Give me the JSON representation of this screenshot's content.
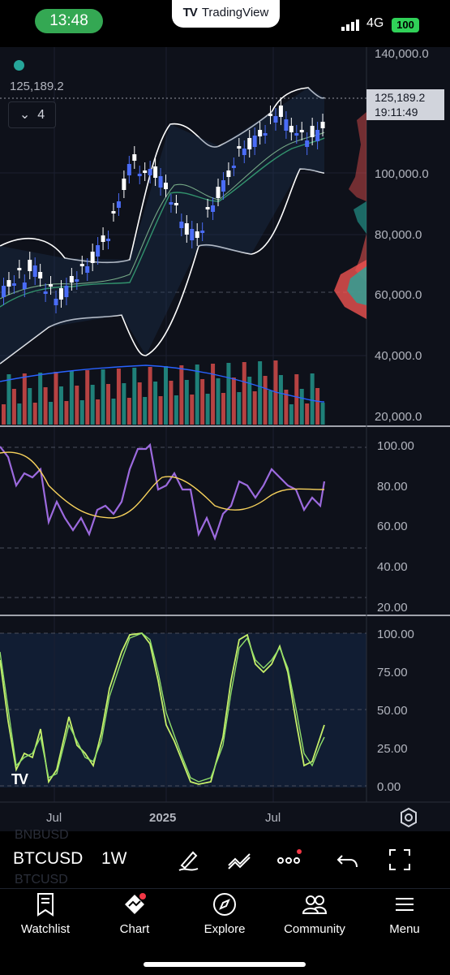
{
  "status_bar": {
    "time": "13:48",
    "app": "TradingView",
    "network": "4G",
    "battery": "100"
  },
  "chart": {
    "last_price_label": "125,189.2",
    "indicator_count": "4",
    "price_tag": {
      "price": "125,189.2",
      "countdown": "19:11:49"
    },
    "price_ticks": [
      "140,000.0",
      "100,000.0",
      "80,000.0",
      "60,000.0",
      "40,000.0",
      "20,000.0"
    ],
    "rsi_ticks": [
      "100.00",
      "80.00",
      "60.00",
      "40.00",
      "20.00"
    ],
    "stoch_ticks": [
      "100.00",
      "75.00",
      "50.00",
      "25.00",
      "0.00"
    ],
    "time_ticks": [
      "Jul",
      "2025",
      "Jul"
    ],
    "colors": {
      "up": "#26a69a",
      "down": "#ef5350",
      "candle_up": "#ffffff",
      "candle_down": "#4a6cf7",
      "rsi": "#9c6ade",
      "rsi_ma": "#f7d25c",
      "stoch_k": "#c7f06a",
      "stoch_d": "#8fde6a"
    }
  },
  "toolbar": {
    "symbol": "BTCUSD",
    "interval": "1W",
    "ghost_top": "BNBUSD",
    "ghost_bottom": "BTCUSD"
  },
  "tabs": [
    {
      "label": "Watchlist",
      "icon": "watchlist-icon"
    },
    {
      "label": "Chart",
      "icon": "chart-icon"
    },
    {
      "label": "Explore",
      "icon": "explore-icon"
    },
    {
      "label": "Community",
      "icon": "community-icon"
    },
    {
      "label": "Menu",
      "icon": "menu-icon"
    }
  ]
}
